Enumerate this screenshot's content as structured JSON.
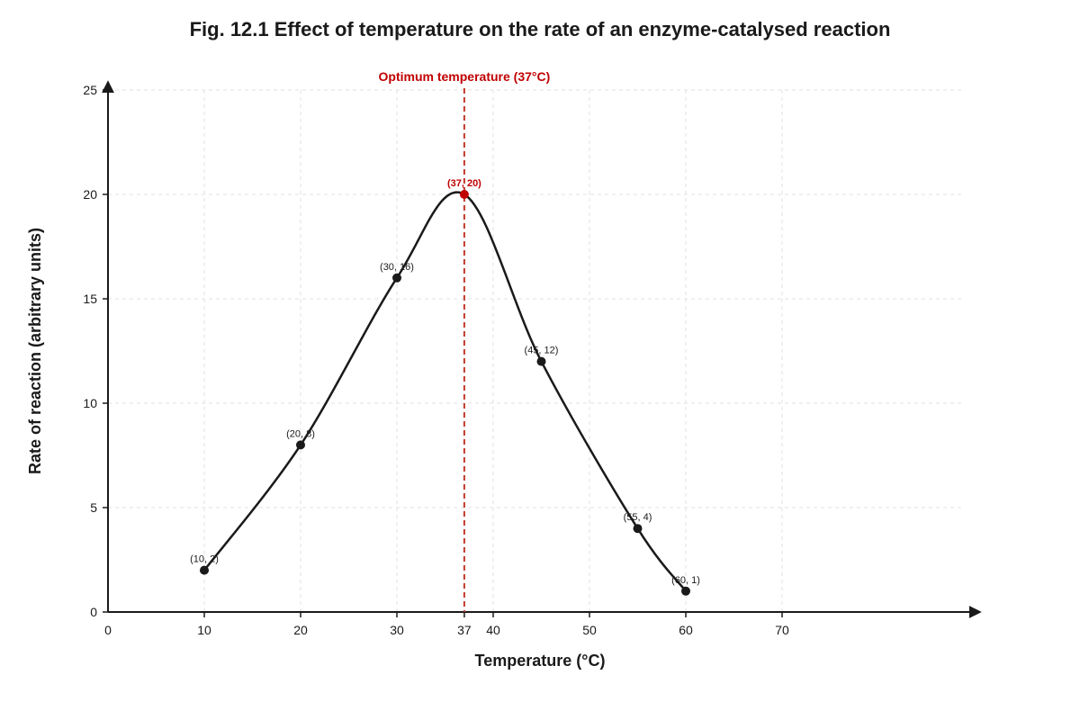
{
  "chart_data": {
    "type": "line",
    "title": "Fig. 12.1 Effect of temperature on the rate of an enzyme-catalysed reaction",
    "xlabel": "Temperature (°C)",
    "ylabel": "Rate of reaction (arbitrary units)",
    "xlim": [
      0,
      90
    ],
    "ylim": [
      0,
      25
    ],
    "x_ticks": [
      0,
      10,
      20,
      30,
      37,
      40,
      50,
      60,
      70
    ],
    "y_ticks": [
      0,
      5,
      10,
      15,
      20,
      25
    ],
    "grid": true,
    "series": [
      {
        "points": [
          {
            "x": 10,
            "y": 2,
            "label": "(10, 2)"
          },
          {
            "x": 20,
            "y": 8,
            "label": "(20, 8)"
          },
          {
            "x": 30,
            "y": 16,
            "label": "(30, 16)"
          },
          {
            "x": 37,
            "y": 20,
            "label": "(37, 20)",
            "highlight": true
          },
          {
            "x": 45,
            "y": 12,
            "label": "(45, 12)"
          },
          {
            "x": 55,
            "y": 4,
            "label": "(55, 4)"
          },
          {
            "x": 60,
            "y": 1,
            "label": "(60, 1)"
          }
        ],
        "color": "#1a1a1a"
      }
    ],
    "annotations": [
      {
        "x": 37,
        "text": "Optimum temperature (37°C)",
        "color": "#c00000"
      }
    ],
    "highlight_color": "#c00000"
  }
}
